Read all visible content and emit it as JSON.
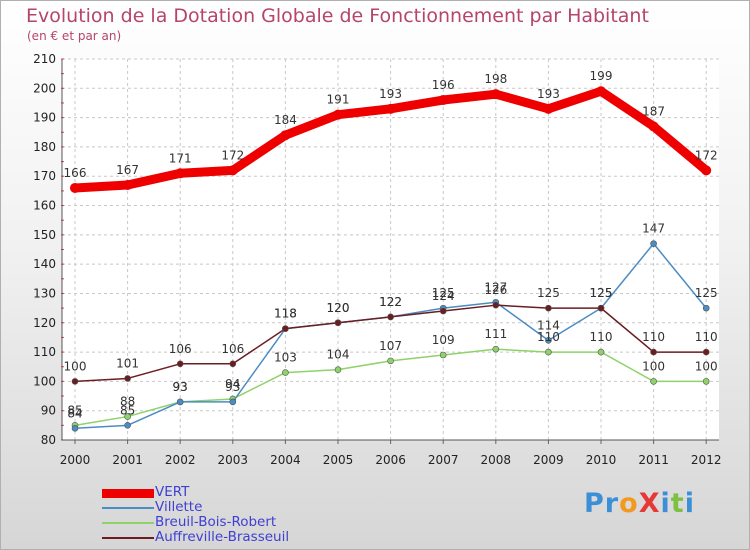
{
  "title": "Evolution de la Dotation Globale de Fonctionnement par Habitant",
  "subtitle": "(en € et par an)",
  "brand": {
    "name": "Proxiti",
    "letters": [
      {
        "ch": "P",
        "color": "#3b8fd6"
      },
      {
        "ch": "r",
        "color": "#3b8fd6"
      },
      {
        "ch": "o",
        "color": "#f39a1e"
      },
      {
        "ch": "X",
        "color": "#e53935"
      },
      {
        "ch": "i",
        "color": "#3b8fd6"
      },
      {
        "ch": "t",
        "color": "#7cc142"
      },
      {
        "ch": "i",
        "color": "#3b8fd6"
      }
    ]
  },
  "chart_data": {
    "type": "line",
    "title": "Evolution de la Dotation Globale de Fonctionnement par Habitant",
    "ylabel": "(en € et par an)",
    "xlabel": "",
    "x": [
      "2000",
      "2001",
      "2002",
      "2003",
      "2004",
      "2005",
      "2006",
      "2007",
      "2008",
      "2009",
      "2010",
      "2011",
      "2012"
    ],
    "ylim": [
      80,
      210
    ],
    "yticks": [
      80,
      90,
      100,
      110,
      120,
      130,
      140,
      150,
      160,
      170,
      180,
      190,
      200,
      210
    ],
    "grid": true,
    "legend_position": "bottom-left",
    "series": [
      {
        "name": "VERT",
        "color": "#ee0000",
        "values": [
          166,
          167,
          171,
          172,
          184,
          191,
          193,
          196,
          198,
          193,
          199,
          187,
          172
        ]
      },
      {
        "name": "Villette",
        "color": "#4a8cc4",
        "values": [
          84,
          85,
          93,
          93,
          118,
          120,
          122,
          125,
          127,
          114,
          125,
          147,
          125
        ]
      },
      {
        "name": "Breuil-Bois-Robert",
        "color": "#8fd26a",
        "values": [
          85,
          88,
          93,
          94,
          103,
          104,
          107,
          109,
          111,
          110,
          110,
          100,
          100
        ]
      },
      {
        "name": "Auffreville-Brasseuil",
        "color": "#6b1d20",
        "values": [
          100,
          101,
          106,
          106,
          118,
          120,
          122,
          124,
          126,
          125,
          125,
          110,
          110
        ]
      }
    ]
  }
}
